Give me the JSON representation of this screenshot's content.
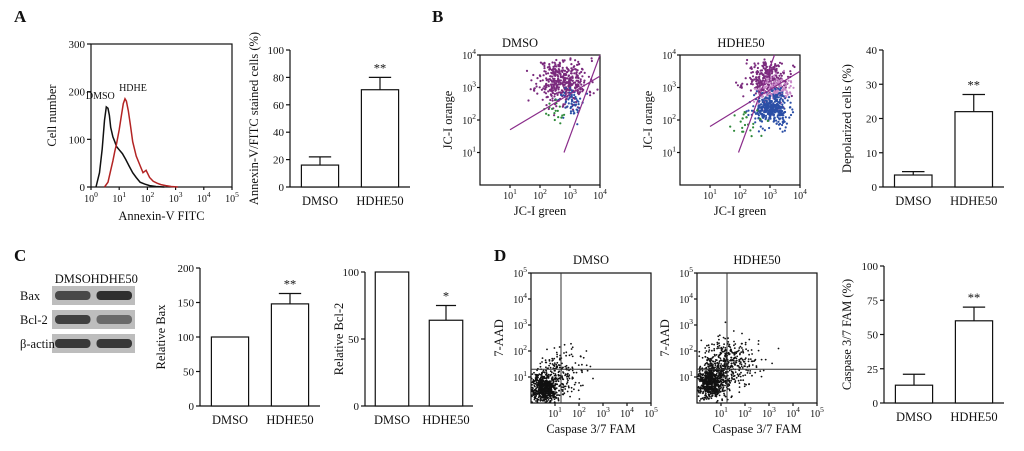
{
  "panels": {
    "A": "A",
    "B": "B",
    "C": "C",
    "D": "D"
  },
  "colors": {
    "dmso_hist": "#111111",
    "hdhe_hist": "#b32424",
    "jc1_purple": "#7a2a7d",
    "jc1_blue": "#2b4fa6",
    "jc1_green": "#2f8a3b",
    "fit_line": "#8a2c8a",
    "gate_line": "#333333"
  },
  "chart_data": [
    {
      "id": "annexin-histogram",
      "type": "line",
      "xlabel": "Annexin-V FITC",
      "ylabel": "Cell number",
      "xscale": "log",
      "xlim": [
        1,
        100000
      ],
      "ylim": [
        0,
        300
      ],
      "yticks": [
        "0",
        "100",
        "200",
        "300"
      ],
      "xticks": [
        {
          "base": "10",
          "exp": "0"
        },
        {
          "base": "10",
          "exp": "1"
        },
        {
          "base": "10",
          "exp": "2"
        },
        {
          "base": "10",
          "exp": "3"
        },
        {
          "base": "10",
          "exp": "4"
        },
        {
          "base": "10",
          "exp": "5"
        }
      ],
      "series": [
        {
          "name": "DMSO",
          "color": "#111111",
          "x": [
            1.5,
            2,
            2.5,
            3,
            3.5,
            4,
            4.5,
            5,
            6,
            7,
            8,
            10,
            13,
            17,
            22,
            30,
            40,
            55,
            80,
            120,
            200,
            400
          ],
          "y": [
            0,
            30,
            80,
            140,
            168,
            165,
            150,
            125,
            105,
            95,
            85,
            78,
            70,
            58,
            45,
            30,
            20,
            10,
            6,
            3,
            1,
            0
          ]
        },
        {
          "name": "HDHE",
          "color": "#b32424",
          "x": [
            3,
            4,
            5,
            6,
            7,
            8,
            10,
            12,
            14,
            16,
            18,
            21,
            25,
            30,
            40,
            55,
            70,
            90,
            120,
            160,
            220,
            300,
            450,
            700,
            1200
          ],
          "y": [
            0,
            10,
            35,
            55,
            75,
            90,
            120,
            150,
            175,
            185,
            180,
            160,
            130,
            95,
            65,
            45,
            30,
            35,
            20,
            12,
            8,
            5,
            3,
            1,
            0
          ]
        }
      ]
    },
    {
      "id": "annexin-bar",
      "type": "bar",
      "ylabel": "Annexin-V/FITC stained cells (%)",
      "categories": [
        "DMSO",
        "HDHE50"
      ],
      "values": [
        16,
        71
      ],
      "errors": [
        6,
        9
      ],
      "significance": [
        "",
        "**"
      ],
      "ylim": [
        0,
        100
      ],
      "yticks": [
        0,
        20,
        40,
        60,
        80,
        100
      ]
    },
    {
      "id": "jc1-dmso",
      "type": "scatter",
      "title": "DMSO",
      "xlabel": "JC-I green",
      "ylabel": "JC-I orange",
      "xscale": "log",
      "yscale": "log",
      "xlim": [
        1,
        10000
      ],
      "ylim": [
        1,
        10000
      ],
      "ticks": [
        {
          "base": "10",
          "exp": "1"
        },
        {
          "base": "10",
          "exp": "2"
        },
        {
          "base": "10",
          "exp": "3"
        },
        {
          "base": "10",
          "exp": "4"
        }
      ],
      "clusters": [
        {
          "name": "",
          "color": "#7a2a7d",
          "cx": 2.75,
          "cy": 3.2,
          "sx": 0.42,
          "sy": 0.35,
          "n": 420,
          "seed": 11
        },
        {
          "name": "",
          "color": "#2b4fa6",
          "cx": 3.1,
          "cy": 2.55,
          "sx": 0.22,
          "sy": 0.22,
          "n": 55,
          "seed": 12
        },
        {
          "name": "",
          "color": "#2f8a3b",
          "cx": 2.5,
          "cy": 2.25,
          "sx": 0.22,
          "sy": 0.18,
          "n": 18,
          "seed": 13
        }
      ],
      "lines": [
        {
          "x1": 2.8,
          "y1": 1.0,
          "x2": 4.0,
          "y2": 4.0
        },
        {
          "x1": 1.0,
          "y1": 1.7,
          "x2": 4.0,
          "y2": 3.35
        }
      ]
    },
    {
      "id": "jc1-hdhe50",
      "type": "scatter",
      "title": "HDHE50",
      "xlabel": "JC-I green",
      "ylabel": "JC-I orange",
      "xscale": "log",
      "yscale": "log",
      "xlim": [
        1,
        10000
      ],
      "ylim": [
        1,
        10000
      ],
      "ticks": [
        {
          "base": "10",
          "exp": "1"
        },
        {
          "base": "10",
          "exp": "2"
        },
        {
          "base": "10",
          "exp": "3"
        },
        {
          "base": "10",
          "exp": "4"
        }
      ],
      "clusters": [
        {
          "name": "",
          "color": "#7a2a7d",
          "cx": 2.95,
          "cy": 3.25,
          "sx": 0.35,
          "sy": 0.28,
          "n": 300,
          "seed": 21
        },
        {
          "name": "",
          "color": "#c98ac9",
          "cx": 3.1,
          "cy": 2.9,
          "sx": 0.3,
          "sy": 0.25,
          "n": 140,
          "seed": 24
        },
        {
          "name": "",
          "color": "#2b4fa6",
          "cx": 3.05,
          "cy": 2.35,
          "sx": 0.28,
          "sy": 0.25,
          "n": 360,
          "seed": 22
        },
        {
          "name": "",
          "color": "#2f8a3b",
          "cx": 2.35,
          "cy": 1.85,
          "sx": 0.25,
          "sy": 0.2,
          "n": 25,
          "seed": 23
        }
      ],
      "lines": [
        {
          "x1": 1.95,
          "y1": 1.0,
          "x2": 3.15,
          "y2": 4.0
        },
        {
          "x1": 1.0,
          "y1": 1.8,
          "x2": 4.0,
          "y2": 3.5
        }
      ]
    },
    {
      "id": "depolarized-bar",
      "type": "bar",
      "ylabel": "Depolarized cells (%)",
      "categories": [
        "DMSO",
        "HDHE50"
      ],
      "values": [
        3.5,
        22
      ],
      "errors": [
        1,
        5
      ],
      "significance": [
        "",
        "**"
      ],
      "ylim": [
        0,
        40
      ],
      "yticks": [
        0,
        10,
        20,
        30,
        40
      ]
    },
    {
      "id": "western-blot",
      "type": "table",
      "lanes": [
        "DMSO",
        "HDHE50"
      ],
      "rows": [
        {
          "label": "Bax",
          "intensity": [
            0.75,
            0.9
          ]
        },
        {
          "label": "Bcl-2",
          "intensity": [
            0.8,
            0.55
          ]
        },
        {
          "label": "β-actin",
          "intensity": [
            0.85,
            0.85
          ]
        }
      ]
    },
    {
      "id": "relative-bax",
      "type": "bar",
      "ylabel": "Relative Bax",
      "categories": [
        "DMSO",
        "HDHE50"
      ],
      "values": [
        100,
        148
      ],
      "errors": [
        0,
        15
      ],
      "significance": [
        "",
        "**"
      ],
      "ylim": [
        0,
        200
      ],
      "yticks": [
        0,
        50,
        100,
        150,
        200
      ]
    },
    {
      "id": "relative-bcl2",
      "type": "bar",
      "ylabel": "Relative Bcl-2",
      "categories": [
        "DMSO",
        "HDHE50"
      ],
      "values": [
        100,
        64
      ],
      "errors": [
        0,
        11
      ],
      "significance": [
        "",
        "*"
      ],
      "ylim": [
        0,
        100
      ],
      "yticks": [
        0,
        50,
        100
      ]
    },
    {
      "id": "caspase-dmso",
      "type": "scatter",
      "title": "DMSO",
      "xlabel": "Caspase 3/7 FAM",
      "ylabel": "7-AAD",
      "xscale": "log",
      "yscale": "log",
      "xlim": [
        1,
        100000
      ],
      "ylim": [
        1,
        100000
      ],
      "ticks": [
        {
          "base": "10",
          "exp": "1"
        },
        {
          "base": "10",
          "exp": "2"
        },
        {
          "base": "10",
          "exp": "3"
        },
        {
          "base": "10",
          "exp": "4"
        },
        {
          "base": "10",
          "exp": "5"
        }
      ],
      "gate": {
        "x": 1.25,
        "y": 1.3
      },
      "clusters": [
        {
          "name": "",
          "color": "#111111",
          "cx": 0.55,
          "cy": 0.55,
          "sx": 0.28,
          "sy": 0.28,
          "n": 650,
          "seed": 31
        },
        {
          "name": "",
          "color": "#111111",
          "cx": 1.1,
          "cy": 1.1,
          "sx": 0.55,
          "sy": 0.5,
          "n": 220,
          "seed": 32
        }
      ]
    },
    {
      "id": "caspase-hdhe50",
      "type": "scatter",
      "title": "HDHE50",
      "xlabel": "Caspase 3/7 FAM",
      "ylabel": "7-AAD",
      "xscale": "log",
      "yscale": "log",
      "xlim": [
        1,
        100000
      ],
      "ylim": [
        1,
        100000
      ],
      "ticks": [
        {
          "base": "10",
          "exp": "1"
        },
        {
          "base": "10",
          "exp": "2"
        },
        {
          "base": "10",
          "exp": "3"
        },
        {
          "base": "10",
          "exp": "4"
        },
        {
          "base": "10",
          "exp": "5"
        }
      ],
      "gate": {
        "x": 1.25,
        "y": 1.3
      },
      "clusters": [
        {
          "name": "",
          "color": "#111111",
          "cx": 0.6,
          "cy": 0.8,
          "sx": 0.3,
          "sy": 0.35,
          "n": 650,
          "seed": 41
        },
        {
          "name": "",
          "color": "#111111",
          "cx": 1.3,
          "cy": 1.5,
          "sx": 0.6,
          "sy": 0.55,
          "n": 420,
          "seed": 42
        }
      ]
    },
    {
      "id": "caspase-bar",
      "type": "bar",
      "ylabel": "Caspase 3/7 FAM (%)",
      "categories": [
        "DMSO",
        "HDHE50"
      ],
      "values": [
        13,
        60
      ],
      "errors": [
        8,
        10
      ],
      "significance": [
        "",
        "**"
      ],
      "ylim": [
        0,
        100
      ],
      "yticks": [
        0,
        25,
        50,
        75,
        100
      ]
    }
  ]
}
